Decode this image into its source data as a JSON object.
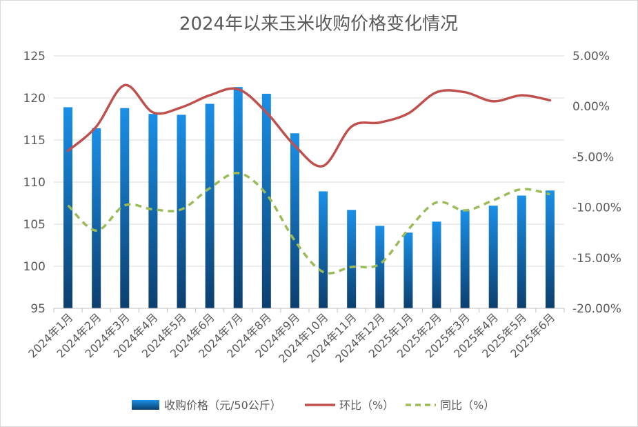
{
  "chart_data": {
    "type": "bar",
    "title": "2024年以来玉米收购价格变化情况",
    "categories": [
      "2024年1月",
      "2024年2月",
      "2024年3月",
      "2024年4月",
      "2024年5月",
      "2024年6月",
      "2024年7月",
      "2024年8月",
      "2024年9月",
      "2024年10月",
      "2024年11月",
      "2024年12月",
      "2025年1月",
      "2025年2月",
      "2025年3月",
      "2025年4月",
      "2025年5月",
      "2025年6月"
    ],
    "series": [
      {
        "name": "收购价格（元/50公斤）",
        "type": "bar",
        "axis": "left",
        "values": [
          118.9,
          116.4,
          118.8,
          118.1,
          118.0,
          119.3,
          121.3,
          120.5,
          115.8,
          108.9,
          106.7,
          104.8,
          104.0,
          105.3,
          106.7,
          107.2,
          108.4,
          109.0
        ]
      },
      {
        "name": "环比（%）",
        "type": "line",
        "axis": "right",
        "style": "solid",
        "values": [
          -4.4,
          -2.0,
          2.1,
          -0.6,
          -0.1,
          1.1,
          1.7,
          -0.6,
          -3.9,
          -5.9,
          -2.0,
          -1.6,
          -0.7,
          1.4,
          1.4,
          0.5,
          1.1,
          0.6
        ]
      },
      {
        "name": "同比（%）",
        "type": "line",
        "axis": "right",
        "style": "dashed",
        "values": [
          -9.8,
          -12.3,
          -9.8,
          -10.2,
          -10.2,
          -8.1,
          -6.6,
          -8.7,
          -13.3,
          -16.4,
          -15.9,
          -15.6,
          -12.2,
          -9.5,
          -10.3,
          -9.3,
          -8.2,
          -8.7
        ]
      }
    ],
    "y_left": {
      "ylim": [
        95,
        125
      ],
      "ticks": [
        95,
        100,
        105,
        110,
        115,
        120,
        125
      ],
      "tick_labels": [
        "95",
        "100",
        "105",
        "110",
        "115",
        "120",
        "125"
      ]
    },
    "y_right": {
      "ylim": [
        -20,
        5
      ],
      "ticks": [
        -20,
        -15,
        -10,
        -5,
        0,
        5
      ],
      "tick_labels": [
        "-20.00%",
        "-15.00%",
        "-10.00%",
        "-5.00%",
        "0.00%",
        "5.00%"
      ]
    },
    "grid": true,
    "legend_position": "bottom",
    "colors": {
      "bar_top": "#1b8fe6",
      "bar_bottom": "#0d3f6e",
      "mom": "#c0504d",
      "yoy": "#9bbb59",
      "grid": "#d9d9d9",
      "axis": "#bfbfbf"
    }
  }
}
